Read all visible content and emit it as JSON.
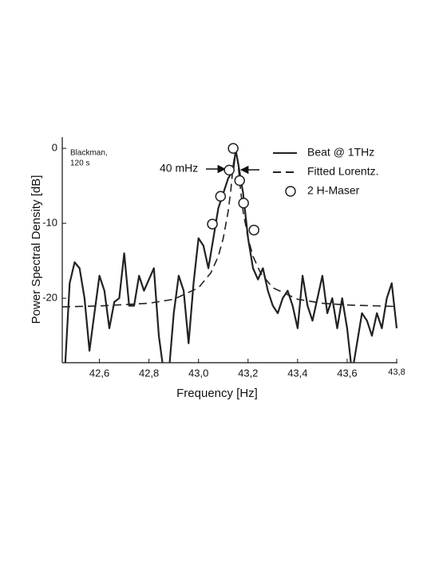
{
  "chart_data": {
    "type": "line",
    "xlabel": "Frequency  [Hz]",
    "ylabel": "Power Spectral Density [dB]",
    "annotations": [
      "Blackman,",
      "120 s",
      "40 mHz"
    ],
    "xlim": [
      42.45,
      43.8
    ],
    "xticks": [
      {
        "value": 42.6,
        "label": "42,6"
      },
      {
        "value": 42.8,
        "label": "42,8"
      },
      {
        "value": 43.0,
        "label": "43,0"
      },
      {
        "value": 43.2,
        "label": "43,2"
      },
      {
        "value": 43.4,
        "label": "43,4"
      },
      {
        "value": 43.6,
        "label": "43,6"
      },
      {
        "value": 43.8,
        "label": "43,8"
      }
    ],
    "ylim": [
      -28.6,
      1.5
    ],
    "yticks": [
      0,
      -10,
      -20
    ],
    "legend": "upper right",
    "series": [
      {
        "name": "Beat @ 1THz",
        "color": "#222222",
        "style": "solid",
        "x": [
          42.46,
          42.48,
          42.5,
          42.52,
          42.54,
          42.56,
          42.58,
          42.6,
          42.62,
          42.64,
          42.66,
          42.68,
          42.7,
          42.72,
          42.74,
          42.76,
          42.78,
          42.8,
          42.82,
          42.84,
          42.86,
          42.88,
          42.9,
          42.92,
          42.94,
          42.96,
          42.98,
          43.0,
          43.02,
          43.04,
          43.06,
          43.08,
          43.1,
          43.12,
          43.14,
          43.15,
          43.16,
          43.18,
          43.2,
          43.22,
          43.24,
          43.26,
          43.28,
          43.3,
          43.32,
          43.34,
          43.36,
          43.38,
          43.4,
          43.42,
          43.44,
          43.46,
          43.48,
          43.5,
          43.52,
          43.54,
          43.56,
          43.58,
          43.6,
          43.62,
          43.64,
          43.66,
          43.68,
          43.7,
          43.72,
          43.74,
          43.76,
          43.78,
          43.8
        ],
        "values": [
          -30,
          -18,
          -15.2,
          -16,
          -20,
          -27,
          -22,
          -17,
          -19,
          -24,
          -20.5,
          -20,
          -14,
          -21,
          -21,
          -17,
          -19,
          -17.5,
          -16,
          -25,
          -30,
          -30,
          -22,
          -17,
          -19,
          -26,
          -18,
          -12,
          -13,
          -16,
          -12,
          -8,
          -6,
          -4,
          -3,
          -0.2,
          -2,
          -6,
          -12,
          -16,
          -17.5,
          -16,
          -19,
          -21,
          -22,
          -20,
          -19,
          -21,
          -24,
          -17,
          -21,
          -23,
          -20,
          -17,
          -22,
          -20,
          -24,
          -20,
          -24,
          -30,
          -26,
          -22,
          -23,
          -25,
          -22,
          -24,
          -20,
          -18,
          -24
        ]
      },
      {
        "name": "Fitted Lorentz.",
        "color": "#222222",
        "style": "dashed",
        "x": [
          42.45,
          42.6,
          42.8,
          42.9,
          43.0,
          43.05,
          43.08,
          43.1,
          43.12,
          43.13,
          43.14,
          43.15,
          43.16,
          43.17,
          43.18,
          43.2,
          43.22,
          43.25,
          43.3,
          43.4,
          43.5,
          43.6,
          43.8
        ],
        "values": [
          -21.14,
          -21.03,
          -20.67,
          -20.13,
          -18.6,
          -16.6,
          -14.4,
          -12.0,
          -8.4,
          -5.65,
          -2.23,
          0,
          -2.23,
          -5.65,
          -8.4,
          -12.0,
          -14.4,
          -16.6,
          -18.6,
          -20.13,
          -20.67,
          -20.9,
          -21.1
        ]
      },
      {
        "name": "2 H-Maser",
        "color": "#222222",
        "style": "markers",
        "x": [
          43.14,
          43.124,
          43.166,
          43.089,
          43.182,
          43.056,
          43.224
        ],
        "values": [
          0,
          -2.9,
          -4.3,
          -6.4,
          -7.3,
          -10.1,
          -10.9
        ]
      }
    ]
  }
}
